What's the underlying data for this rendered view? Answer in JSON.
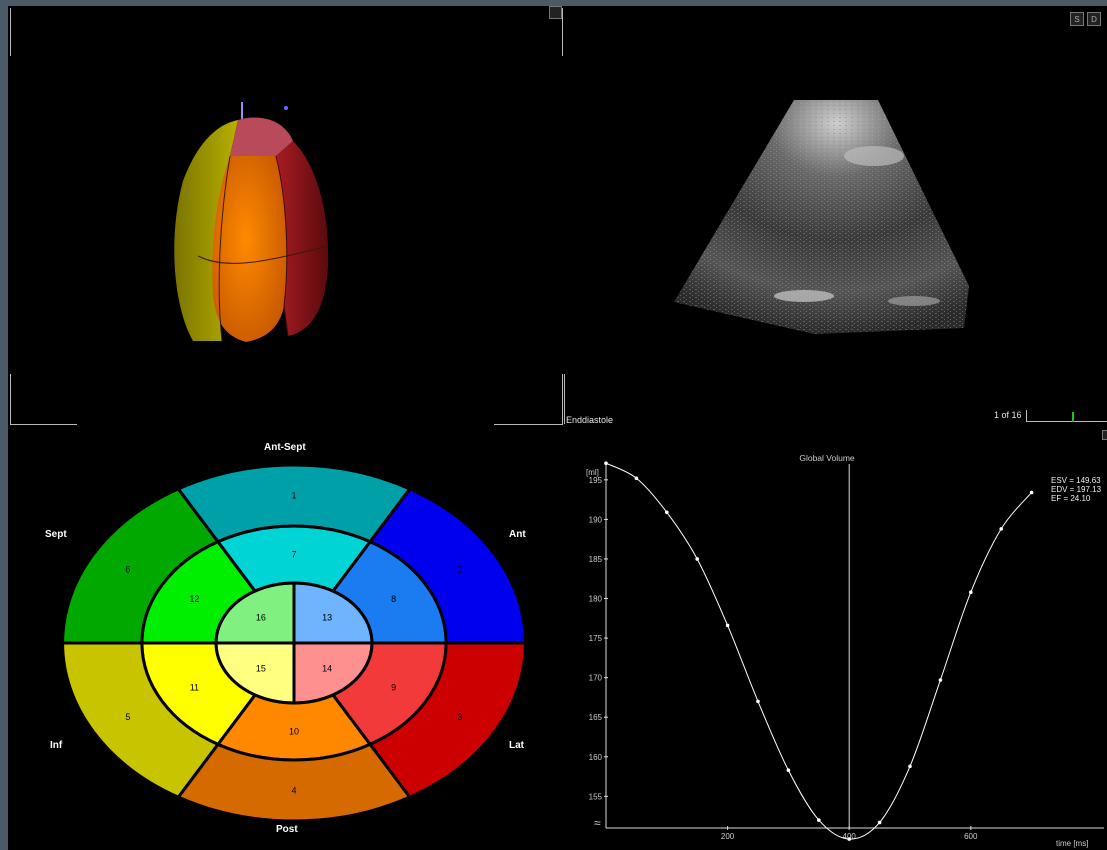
{
  "viewer": {
    "phase_label": "Enddiastole",
    "frame_counter": "1 of 16",
    "btn_s": "S",
    "btn_d": "D"
  },
  "bullseye": {
    "labels": {
      "top": "Ant-Sept",
      "left_top": "Sept",
      "left_bottom": "Inf",
      "right_top": "Ant",
      "right_bottom": "Lat",
      "bottom": "Post"
    },
    "segments": [
      {
        "id": "1",
        "color": "#00a0a8"
      },
      {
        "id": "2",
        "color": "#0000ee"
      },
      {
        "id": "3",
        "color": "#cc0000"
      },
      {
        "id": "4",
        "color": "#d46a00"
      },
      {
        "id": "5",
        "color": "#c8c400"
      },
      {
        "id": "6",
        "color": "#00a800"
      },
      {
        "id": "7",
        "color": "#00d4d4"
      },
      {
        "id": "8",
        "color": "#1a7cf0"
      },
      {
        "id": "9",
        "color": "#f23a3a"
      },
      {
        "id": "10",
        "color": "#ff8800"
      },
      {
        "id": "11",
        "color": "#ffff00"
      },
      {
        "id": "12",
        "color": "#00ee00"
      },
      {
        "id": "13",
        "color": "#6eb4ff"
      },
      {
        "id": "14",
        "color": "#ff9090"
      },
      {
        "id": "15",
        "color": "#ffff80"
      },
      {
        "id": "16",
        "color": "#80f080"
      }
    ]
  },
  "chart_data": {
    "type": "line",
    "title": "Global Volume",
    "xlabel": "time [ms]",
    "ylabel": "[ml]",
    "xlim": [
      0,
      750
    ],
    "ylim": [
      151,
      197
    ],
    "x_ticks": [
      200,
      400,
      600
    ],
    "y_ticks": [
      155,
      160,
      165,
      170,
      175,
      180,
      185,
      190,
      195
    ],
    "axis_break_symbol": "≈",
    "cursor_x": 400,
    "annotations": [
      "ESV = 149.63",
      "EDV = 197.13",
      "EF = 24.10"
    ],
    "series": [
      {
        "x": [
          0,
          50,
          100,
          150,
          200,
          250,
          300,
          350,
          400,
          450,
          500,
          550,
          600,
          650,
          700
        ],
        "y": [
          197.1,
          195.2,
          190.9,
          185.0,
          176.6,
          167.0,
          158.3,
          152.0,
          149.6,
          151.7,
          158.8,
          169.7,
          180.8,
          188.8,
          193.4
        ]
      }
    ]
  }
}
